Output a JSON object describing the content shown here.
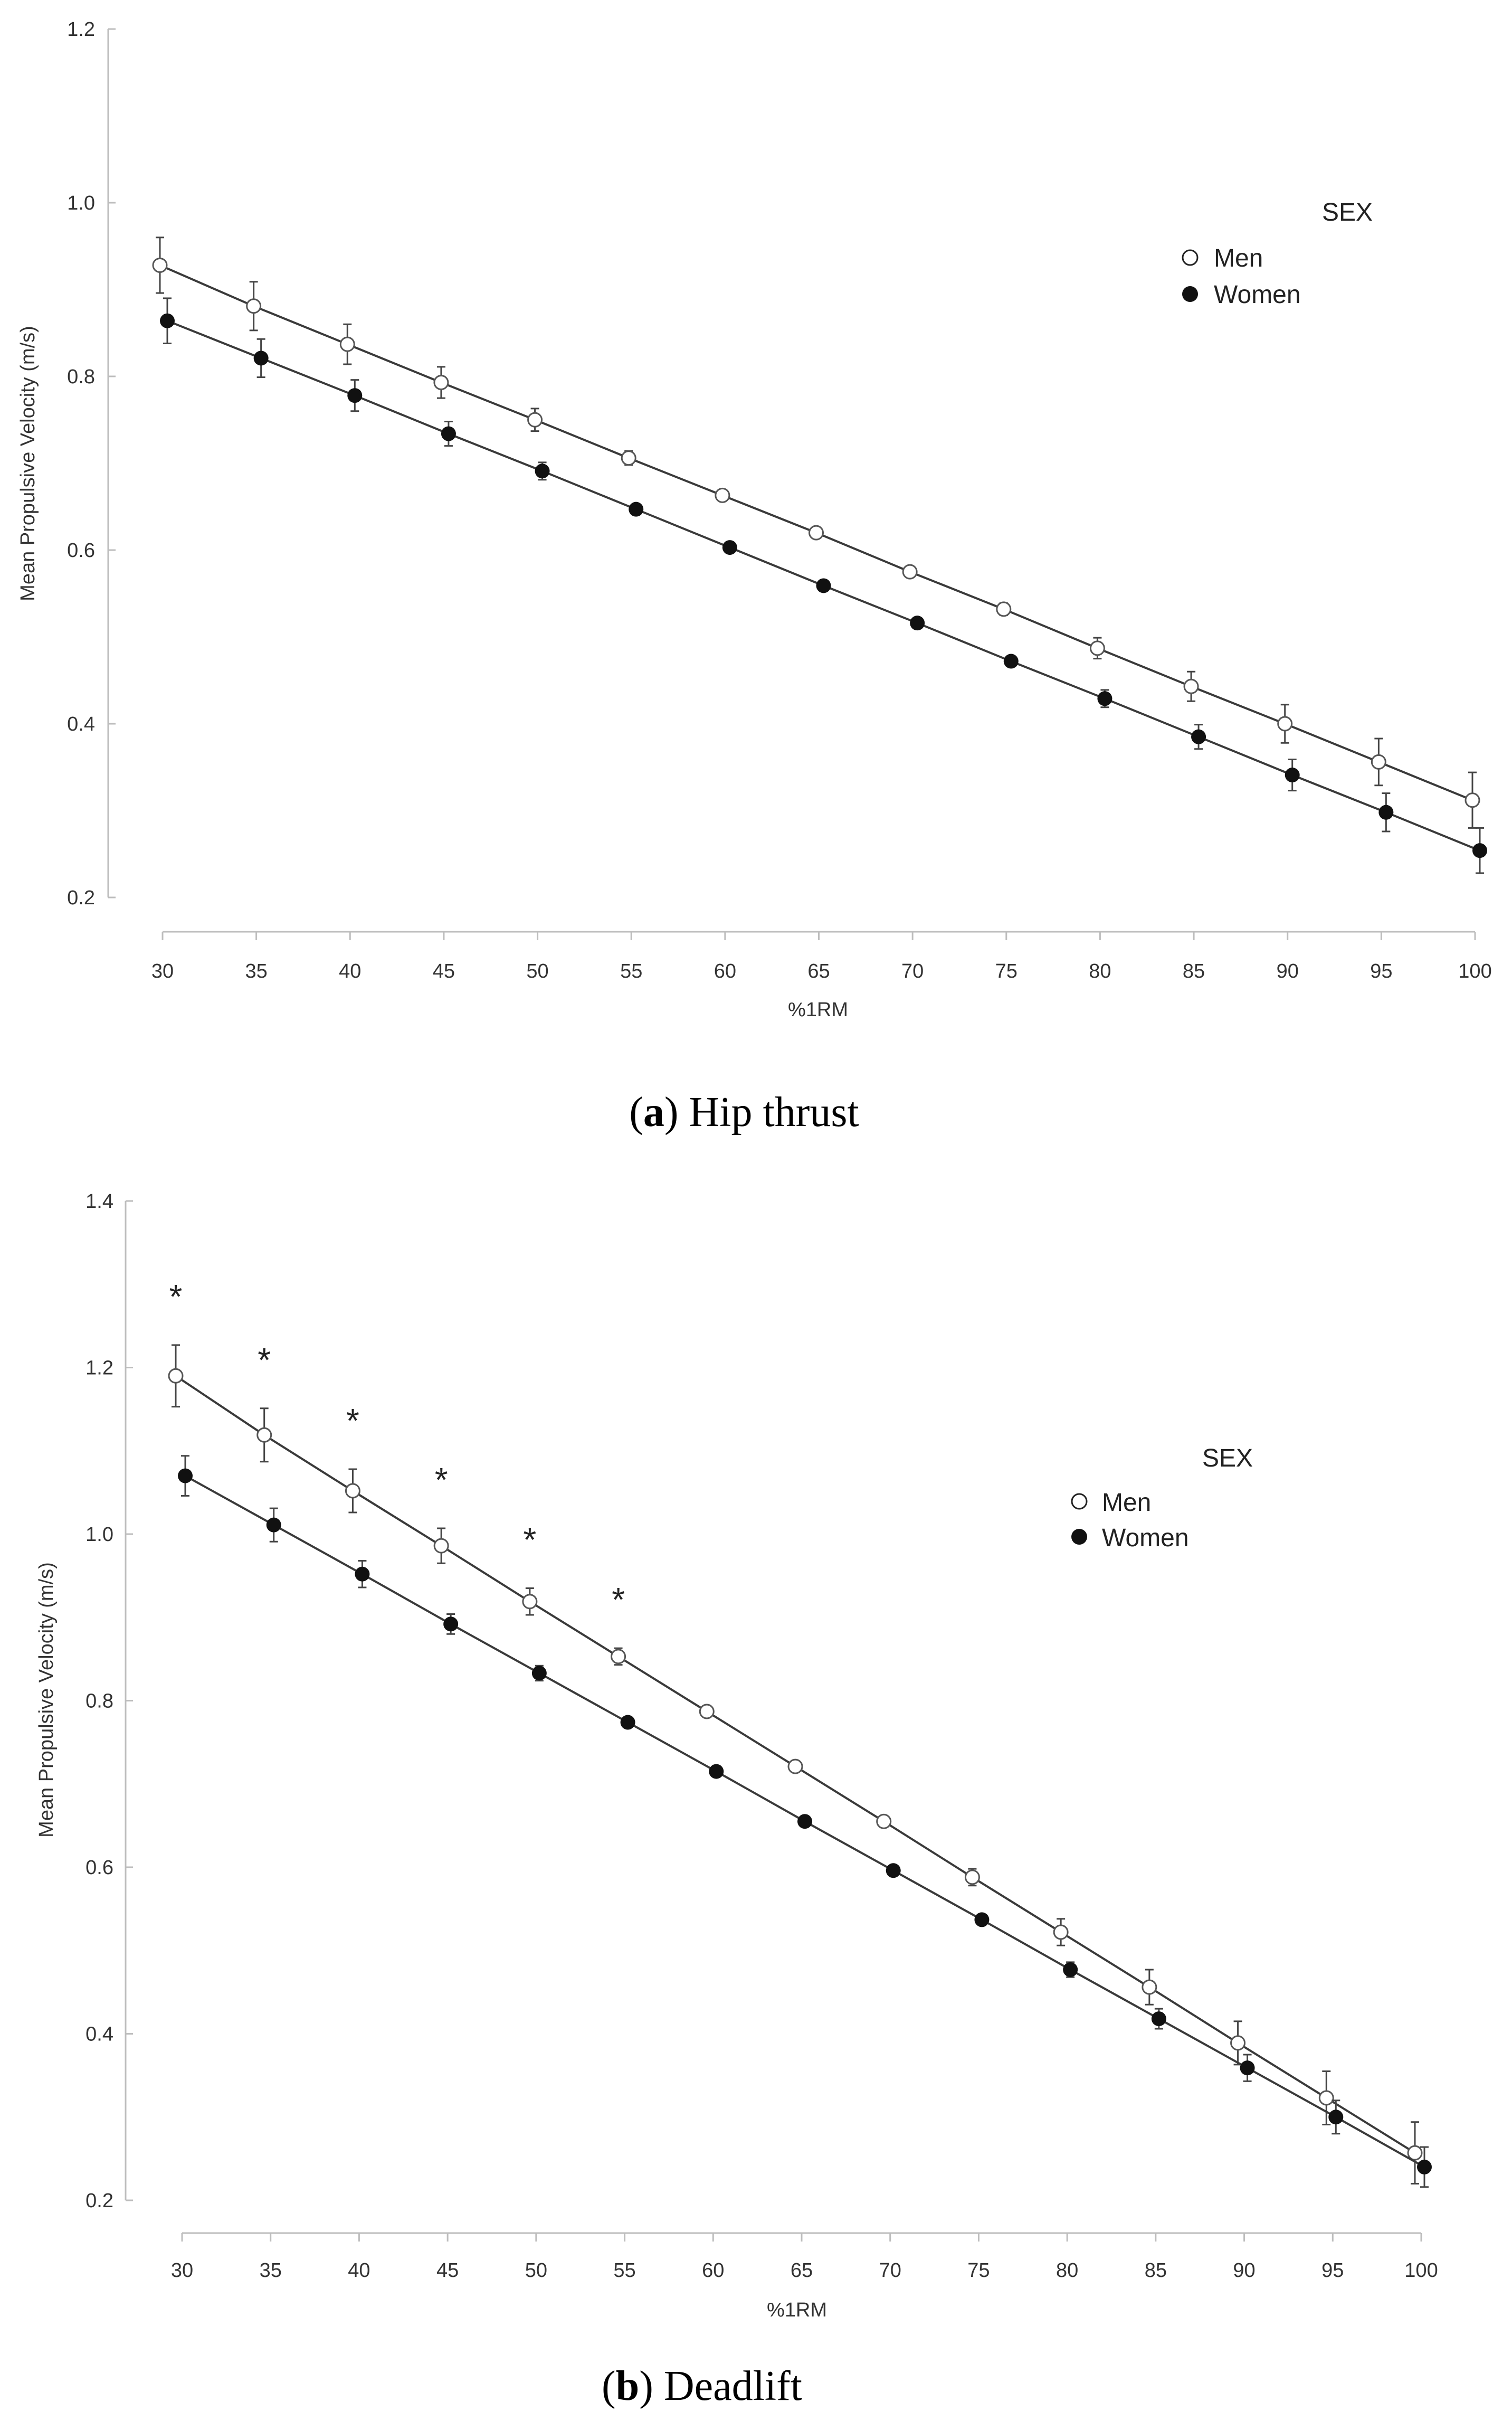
{
  "chart_data": [
    {
      "type": "line",
      "ylabel": "Mean Propulsive Velocity (m/s)",
      "xlabel": "%1RM",
      "x": [
        30,
        35,
        40,
        45,
        50,
        55,
        60,
        65,
        70,
        75,
        80,
        85,
        90,
        95,
        100
      ],
      "xticks": [
        "30",
        "35",
        "40",
        "45",
        "50",
        "55",
        "60",
        "65",
        "70",
        "75",
        "80",
        "85",
        "90",
        "95",
        "100"
      ],
      "ylim": [
        0.2,
        1.2
      ],
      "yticks": [
        "0.2",
        "0.4",
        "0.6",
        "0.8",
        "1.0",
        "1.2"
      ],
      "legend_title": "SEX",
      "series": [
        {
          "name": "Men",
          "marker": "open-circle",
          "values": [
            0.928,
            0.881,
            0.837,
            0.793,
            0.75,
            0.706,
            0.663,
            0.62,
            0.575,
            0.532,
            0.487,
            0.443,
            0.4,
            0.356,
            0.312
          ],
          "error": [
            0.032,
            0.028,
            0.023,
            0.018,
            0.013,
            0.008,
            0.004,
            0.004,
            0.004,
            0.007,
            0.012,
            0.017,
            0.022,
            0.027,
            0.032
          ]
        },
        {
          "name": "Women",
          "marker": "filled-circle",
          "values": [
            0.864,
            0.821,
            0.778,
            0.734,
            0.691,
            0.647,
            0.603,
            0.559,
            0.516,
            0.472,
            0.429,
            0.385,
            0.341,
            0.298,
            0.254
          ],
          "error": [
            0.026,
            0.022,
            0.018,
            0.014,
            0.01,
            0.006,
            0.003,
            0.003,
            0.003,
            0.006,
            0.01,
            0.014,
            0.018,
            0.022,
            0.026
          ]
        }
      ],
      "caption_label": "a",
      "caption_text": "Hip thrust"
    },
    {
      "type": "line",
      "ylabel": "Mean Propulsive Velocity (m/s)",
      "xlabel": "%1RM",
      "x": [
        30,
        35,
        40,
        45,
        50,
        55,
        60,
        65,
        70,
        75,
        80,
        85,
        90,
        95,
        100
      ],
      "xticks": [
        "30",
        "35",
        "40",
        "45",
        "50",
        "55",
        "60",
        "65",
        "70",
        "75",
        "80",
        "85",
        "90",
        "95",
        "100"
      ],
      "ylim": [
        0.2,
        1.4
      ],
      "yticks": [
        "0.2",
        "0.4",
        "0.6",
        "0.8",
        "1.0",
        "1.2",
        "1.4"
      ],
      "legend_title": "SEX",
      "series": [
        {
          "name": "Men",
          "marker": "open-circle",
          "values": [
            1.19,
            1.119,
            1.052,
            0.986,
            0.919,
            0.853,
            0.787,
            0.721,
            0.655,
            0.588,
            0.522,
            0.456,
            0.389,
            0.323,
            0.257
          ],
          "error": [
            0.037,
            0.032,
            0.026,
            0.021,
            0.016,
            0.01,
            0.004,
            0.004,
            0.004,
            0.01,
            0.016,
            0.021,
            0.026,
            0.032,
            0.037
          ]
        },
        {
          "name": "Women",
          "marker": "filled-circle",
          "values": [
            1.07,
            1.011,
            0.952,
            0.892,
            0.833,
            0.774,
            0.715,
            0.655,
            0.596,
            0.537,
            0.477,
            0.418,
            0.359,
            0.3,
            0.24
          ],
          "error": [
            0.024,
            0.02,
            0.016,
            0.012,
            0.009,
            0.005,
            0.003,
            0.003,
            0.003,
            0.005,
            0.009,
            0.012,
            0.016,
            0.02,
            0.024
          ]
        }
      ],
      "significance": {
        "symbol": "*",
        "x": [
          30,
          35,
          40,
          45,
          50,
          55
        ]
      },
      "caption_label": "b",
      "caption_text": "Deadlift"
    }
  ]
}
